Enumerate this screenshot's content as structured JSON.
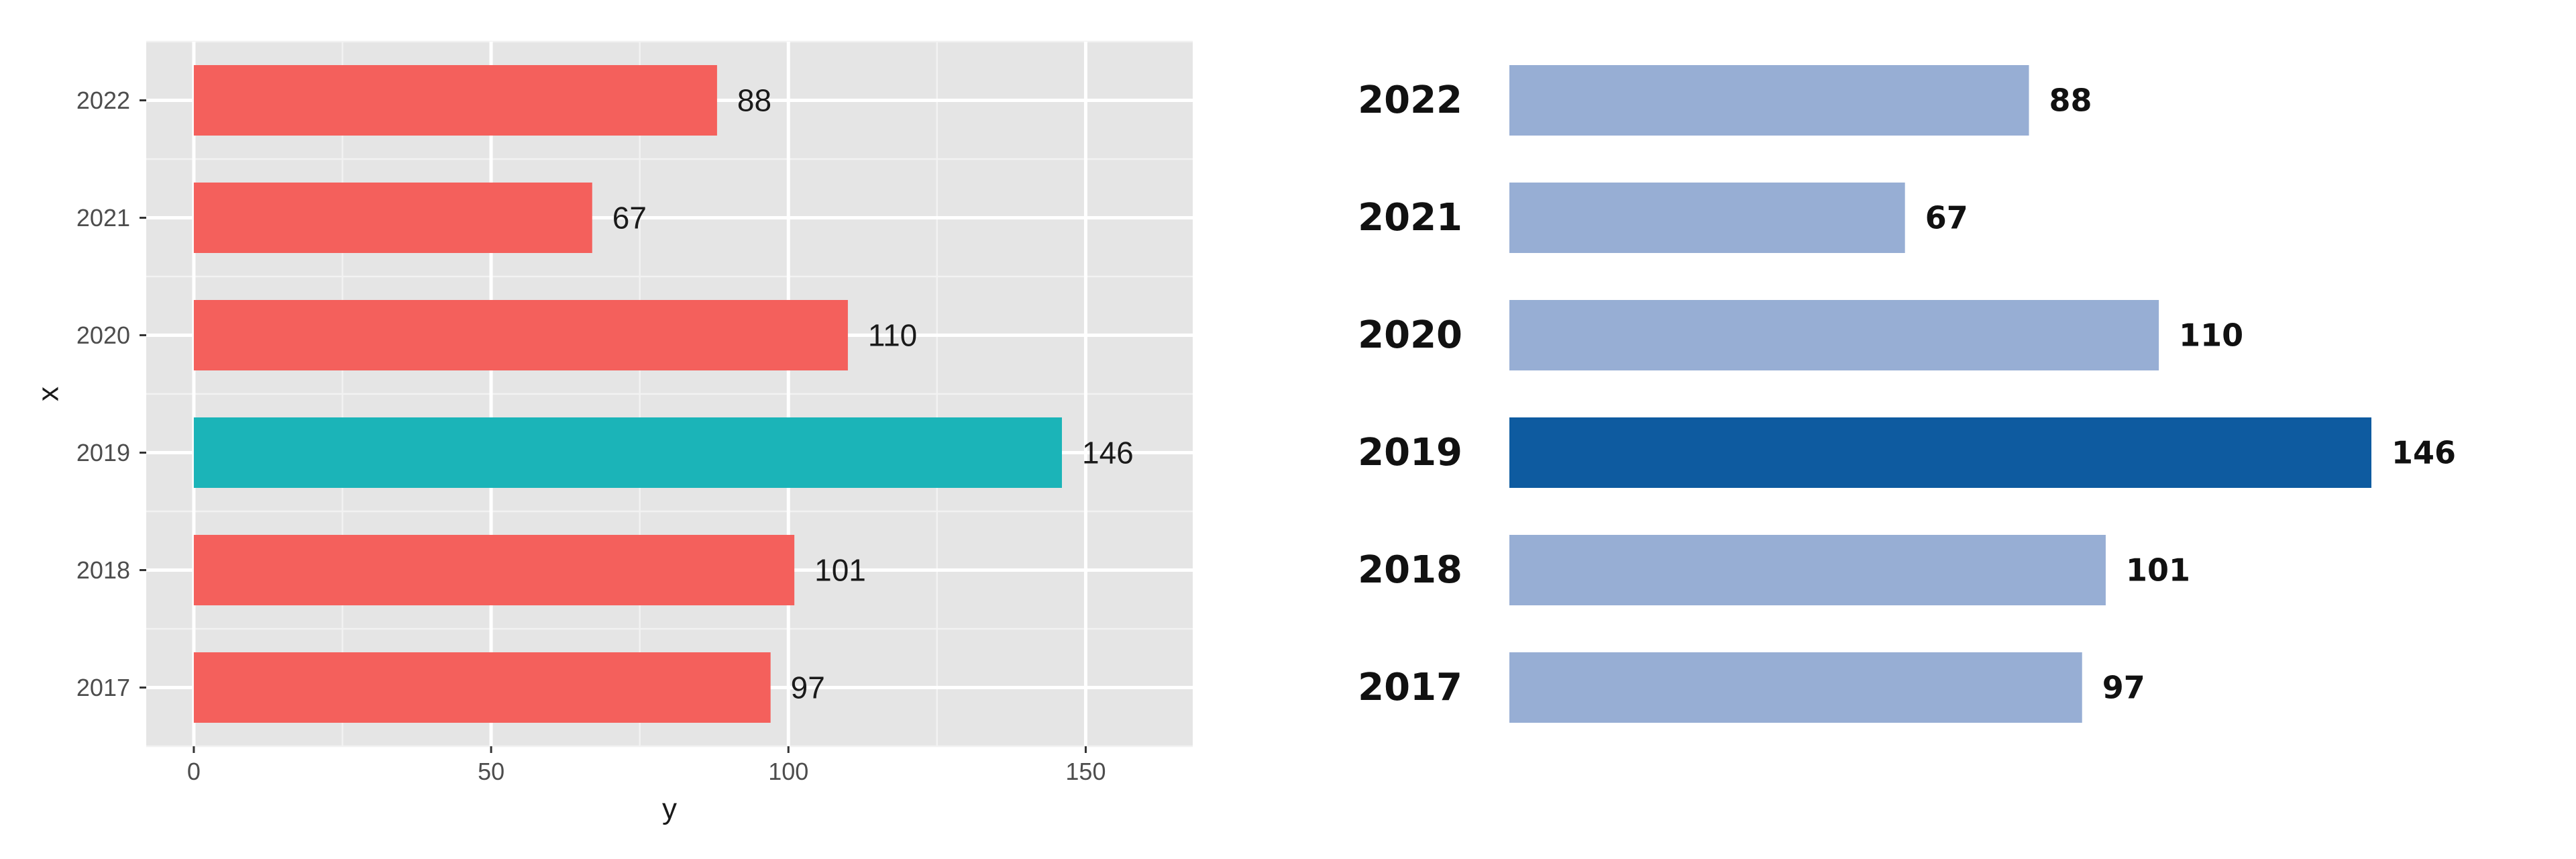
{
  "chart_data": [
    {
      "type": "bar",
      "orientation": "horizontal",
      "categories": [
        "2017",
        "2018",
        "2019",
        "2020",
        "2021",
        "2022"
      ],
      "values": [
        97,
        101,
        146,
        110,
        67,
        88
      ],
      "data_labels": [
        "97",
        "101",
        "146",
        "110",
        "67",
        "88"
      ],
      "xlabel": "y",
      "ylabel": "x",
      "xlim": [
        -8,
        168
      ],
      "x_ticks": [
        0,
        50,
        100,
        150
      ],
      "grid": true,
      "panel_background": "#e5e5e5",
      "bar_color": "#f4605c",
      "highlight": {
        "category": "2019",
        "color": "#1bb4b8"
      }
    },
    {
      "type": "bar",
      "orientation": "horizontal",
      "categories": [
        "2017",
        "2018",
        "2019",
        "2020",
        "2021",
        "2022"
      ],
      "values": [
        97,
        101,
        146,
        110,
        67,
        88
      ],
      "data_labels": [
        "97",
        "101",
        "146",
        "110",
        "67",
        "88"
      ],
      "grid": false,
      "axes": false,
      "bar_color": "#97aed4",
      "highlight": {
        "category": "2019",
        "color": "#0e5ba0"
      }
    }
  ]
}
